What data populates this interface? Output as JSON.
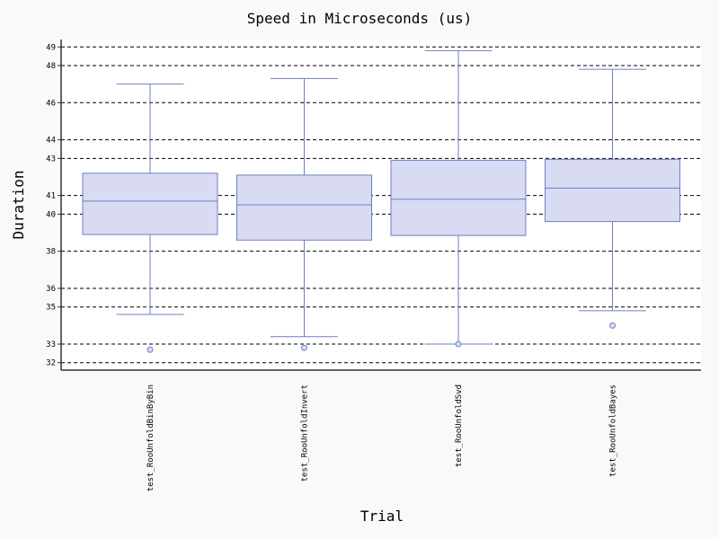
{
  "chart_data": {
    "type": "box",
    "title": "Speed in Microseconds (us)",
    "xlabel": "Trial",
    "ylabel": "Duration",
    "ylim": [
      31.6,
      49.4
    ],
    "yticks": [
      32,
      33,
      35,
      36,
      38,
      40,
      41,
      43,
      44,
      46,
      48,
      49
    ],
    "grid": true,
    "series": [
      {
        "category": "test_RooUnfoldBinByBin",
        "whisker_low": 34.6,
        "q1": 38.9,
        "median": 40.7,
        "q3": 42.2,
        "whisker_high": 47.0,
        "outliers": [
          32.7
        ]
      },
      {
        "category": "test_RooUnfoldInvert",
        "whisker_low": 33.4,
        "q1": 38.6,
        "median": 40.5,
        "q3": 42.1,
        "whisker_high": 47.3,
        "outliers": [
          32.8
        ]
      },
      {
        "category": "test_RooUnfoldSvd",
        "whisker_low": 33.0,
        "q1": 38.85,
        "median": 40.8,
        "q3": 42.9,
        "whisker_high": 48.8,
        "outliers": [
          33.0
        ]
      },
      {
        "category": "test_RooUnfoldBayes",
        "whisker_low": 34.8,
        "q1": 39.6,
        "median": 41.4,
        "q3": 42.95,
        "whisker_high": 47.8,
        "outliers": [
          34.0
        ]
      }
    ]
  }
}
